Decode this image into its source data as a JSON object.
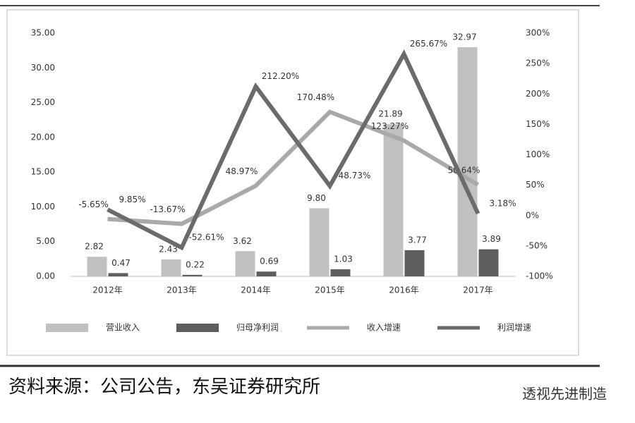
{
  "chart_data": {
    "type": "bar-line",
    "categories": [
      "2012年",
      "2013年",
      "2014年",
      "2015年",
      "2016年",
      "2017年"
    ],
    "series": [
      {
        "name": "营业收入",
        "type": "bar",
        "color": "#c0c0c0",
        "values": [
          2.82,
          2.43,
          3.62,
          9.8,
          21.89,
          32.97
        ],
        "value_labels": [
          "2.82",
          "2.43",
          "3.62",
          "9.80",
          "21.89",
          "32.97"
        ]
      },
      {
        "name": "归母净利润",
        "type": "bar",
        "color": "#5e5e5e",
        "values": [
          0.47,
          0.22,
          0.69,
          1.03,
          3.77,
          3.89
        ],
        "value_labels": [
          "0.47",
          "0.22",
          "0.69",
          "1.03",
          "3.77",
          "3.89"
        ]
      },
      {
        "name": "收入增速",
        "type": "line",
        "axis": "y2",
        "color": "#a9a9a9",
        "values": [
          -5.65,
          -13.67,
          48.97,
          170.48,
          123.27,
          50.64
        ],
        "value_labels": [
          "-5.65%",
          "-13.67%",
          "48.97%",
          "170.48%",
          "123.27%",
          "50.64%"
        ]
      },
      {
        "name": "利润增速",
        "type": "line",
        "axis": "y2",
        "color": "#6b6b6b",
        "values": [
          9.85,
          -52.61,
          212.2,
          48.73,
          265.67,
          3.18
        ],
        "value_labels": [
          "9.85%",
          "-52.61%",
          "212.20%",
          "48.73%",
          "265.67%",
          "3.18%"
        ]
      }
    ],
    "ylim": [
      0,
      35
    ],
    "yticks": [
      {
        "value": 0,
        "label": "0.00"
      },
      {
        "value": 5,
        "label": "5.00"
      },
      {
        "value": 10,
        "label": "10.00"
      },
      {
        "value": 15,
        "label": "15.00"
      },
      {
        "value": 20,
        "label": "20.00"
      },
      {
        "value": 25,
        "label": "25.00"
      },
      {
        "value": 30,
        "label": "30.00"
      },
      {
        "value": 35,
        "label": "35.00"
      }
    ],
    "y2lim": [
      -100,
      300
    ],
    "y2ticks": [
      {
        "value": -100,
        "label": "-100%"
      },
      {
        "value": -50,
        "label": "-50%"
      },
      {
        "value": 0,
        "label": "0%"
      },
      {
        "value": 50,
        "label": "50%"
      },
      {
        "value": 100,
        "label": "100%"
      },
      {
        "value": 150,
        "label": "150%"
      },
      {
        "value": 200,
        "label": "200%"
      },
      {
        "value": 250,
        "label": "250%"
      },
      {
        "value": 300,
        "label": "300%"
      }
    ],
    "grid": false
  },
  "source": "资料来源：公司公告，东吴证券研究所",
  "watermark": "透视先进制造"
}
